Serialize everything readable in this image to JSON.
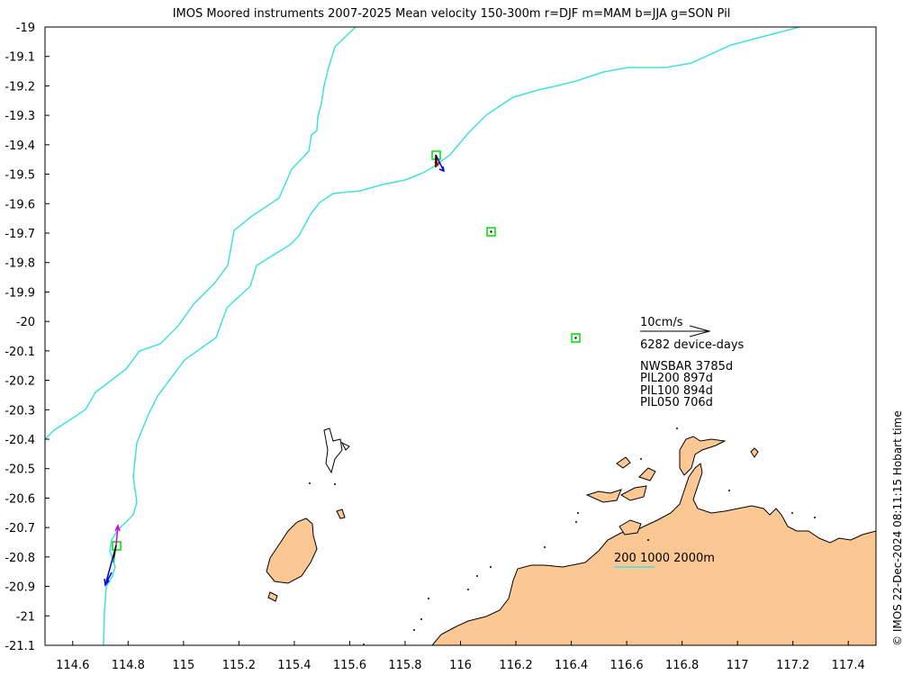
{
  "title": "IMOS Moored instruments 2007-2025 Mean velocity 150-300m r=DJF m=MAM b=JJA g=SON Pil",
  "credit": "© IMOS 22-Dec-2024 08:11:15 Hobart time",
  "axes": {
    "x_ticks": [
      "114.6",
      "114.8",
      "115",
      "115.2",
      "115.4",
      "115.6",
      "115.8",
      "116",
      "116.2",
      "116.4",
      "116.6",
      "116.8",
      "117",
      "117.2",
      "117.4"
    ],
    "y_ticks": [
      "-19",
      "-19.1",
      "-19.2",
      "-19.3",
      "-19.4",
      "-19.5",
      "-19.6",
      "-19.7",
      "-19.8",
      "-19.9",
      "-20",
      "-20.1",
      "-20.2",
      "-20.3",
      "-20.4",
      "-20.5",
      "-20.6",
      "-20.7",
      "-20.8",
      "-20.9",
      "-21",
      "-21.1"
    ],
    "lon_range": [
      114.5,
      117.5
    ],
    "lat_range": [
      -21.1,
      -19.0
    ]
  },
  "legend": {
    "scale_label": "10cm/s",
    "device_days": "6282 device-days",
    "stations": [
      "NWSBAR 3785d",
      "PIL200 897d",
      "PIL100 894d",
      "PIL050 706d"
    ],
    "isobaths": "200 1000 2000m"
  },
  "colors": {
    "land": "#fbc894",
    "contour": "#40e0e0",
    "mooring_box": "#00dd00",
    "DJF": "#e00000",
    "MAM": "#e000e0",
    "JJA": "#0000e0",
    "SON": "#00c000"
  }
}
